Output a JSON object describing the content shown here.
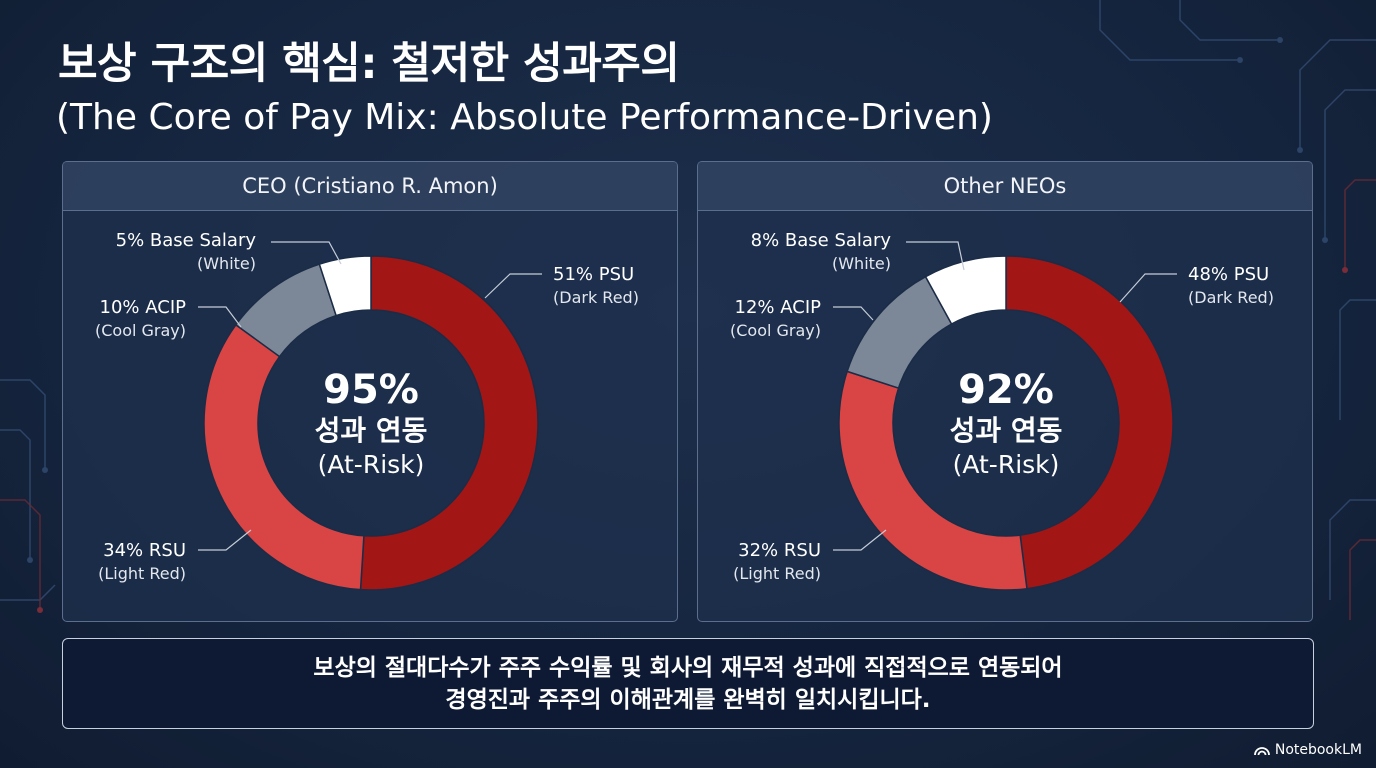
{
  "header": {
    "title_ko": "보상 구조의 핵심: 철저한 성과주의",
    "title_en": "(The Core of Pay Mix: Absolute Performance-Driven)"
  },
  "chart_data": [
    {
      "type": "pie",
      "title": "CEO (Cristiano R. Amon)",
      "slices": [
        {
          "label": "PSU",
          "value": 51,
          "value_text": "51% PSU",
          "color_note": "(Dark Red)",
          "color": "#a21616"
        },
        {
          "label": "RSU",
          "value": 34,
          "value_text": "34% RSU",
          "color_note": "(Light Red)",
          "color": "#d94444"
        },
        {
          "label": "ACIP",
          "value": 10,
          "value_text": "10% ACIP",
          "color_note": "(Cool Gray)",
          "color": "#7c8797"
        },
        {
          "label": "Base Salary",
          "value": 5,
          "value_text": "5% Base Salary",
          "color_note": "(White)",
          "color": "#ffffff"
        }
      ],
      "center": {
        "value": "95%",
        "label_ko": "성과 연동",
        "label_en": "(At-Risk)"
      }
    },
    {
      "type": "pie",
      "title": "Other NEOs",
      "slices": [
        {
          "label": "PSU",
          "value": 48,
          "value_text": "48% PSU",
          "color_note": "(Dark Red)",
          "color": "#a21616"
        },
        {
          "label": "RSU",
          "value": 32,
          "value_text": "32% RSU",
          "color_note": "(Light Red)",
          "color": "#d94444"
        },
        {
          "label": "ACIP",
          "value": 12,
          "value_text": "12% ACIP",
          "color_note": "(Cool Gray)",
          "color": "#7c8797"
        },
        {
          "label": "Base Salary",
          "value": 8,
          "value_text": "8% Base Salary",
          "color_note": "(White)",
          "color": "#ffffff"
        }
      ],
      "center": {
        "value": "92%",
        "label_ko": "성과 연동",
        "label_en": "(At-Risk)"
      }
    }
  ],
  "summary": {
    "line1": "보상의 절대다수가 주주 수익률 및 회사의 재무적 성과에 직접적으로 연동되어",
    "line2": "경영진과 주주의 이해관계를 완벽히 일치시킵니다."
  },
  "brand": {
    "name": "NotebookLM",
    "icon": "notebooklm-logo-icon"
  },
  "colors": {
    "background": "#162640",
    "panel_border": "#5b6e8e",
    "leader_line": "#c5ccd6"
  }
}
